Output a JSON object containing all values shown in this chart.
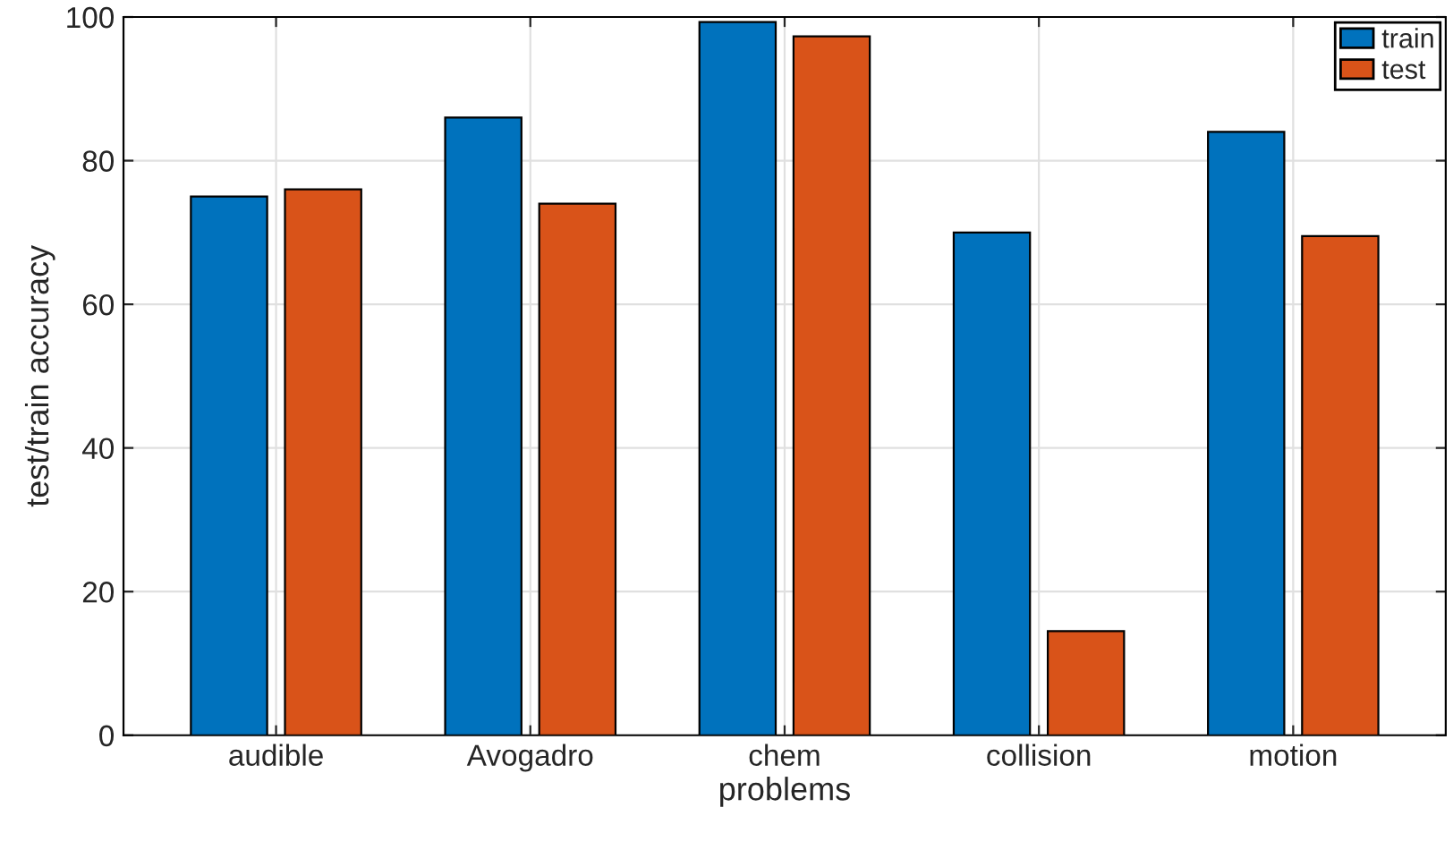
{
  "chart_data": {
    "type": "bar",
    "xlabel": "problems",
    "ylabel": "test/train accuracy",
    "categories": [
      "audible",
      "Avogadro",
      "chem",
      "collision",
      "motion"
    ],
    "series": [
      {
        "name": "train",
        "color": "#0072bd",
        "values": [
          75,
          86,
          99.3,
          70,
          84
        ]
      },
      {
        "name": "test",
        "color": "#d95319",
        "values": [
          76,
          74,
          97.3,
          14.5,
          69.5
        ]
      }
    ],
    "ylim": [
      0,
      100
    ],
    "yticks": [
      0,
      20,
      40,
      60,
      80,
      100
    ],
    "grid": true,
    "legend": "top right"
  }
}
